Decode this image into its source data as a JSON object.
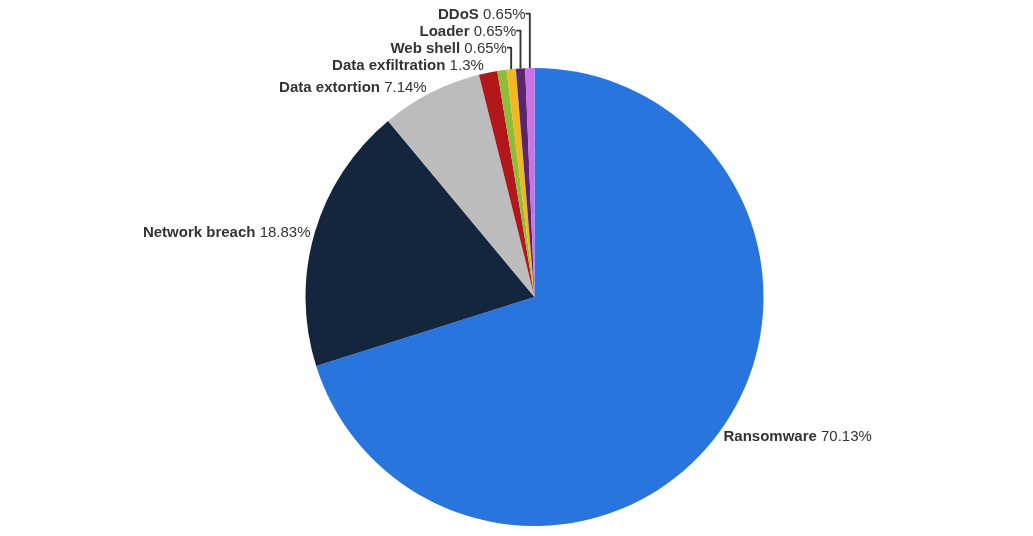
{
  "chart_data": {
    "type": "pie",
    "categories": [
      "Ransomware",
      "Network breach",
      "Data extortion",
      "Data exfiltration",
      null,
      "Web shell",
      "Loader",
      "DDoS"
    ],
    "values": [
      70.13,
      18.83,
      7.14,
      1.3,
      0.65,
      0.65,
      0.65,
      0.65
    ],
    "value_labels": [
      "70.13%",
      "18.83%",
      "7.14%",
      "1.3%",
      null,
      "0.65%",
      "0.65%",
      "0.65%"
    ],
    "colors": [
      "#2876dd",
      "#14263e",
      "#bcbcbc",
      "#b2171b",
      "#8ebd3a",
      "#f2b824",
      "#5d2470",
      "#c972e6"
    ],
    "legend": false
  }
}
